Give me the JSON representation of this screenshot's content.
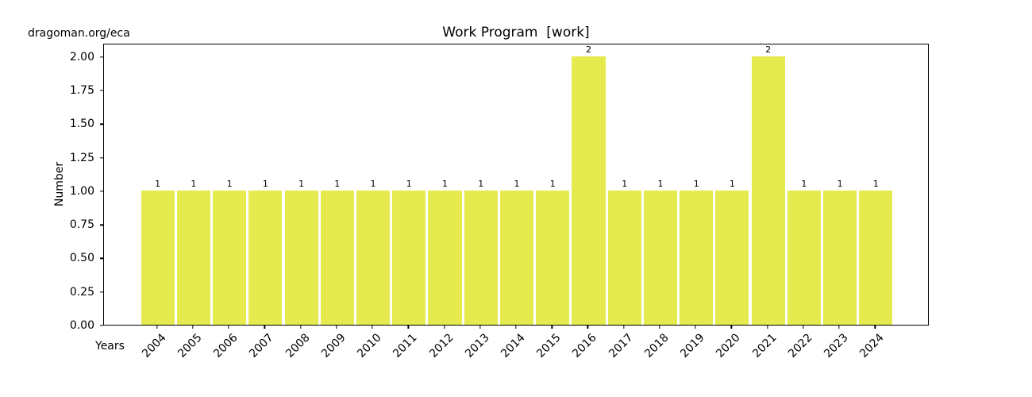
{
  "watermark": "dragoman.org/eca",
  "chart_data": {
    "type": "bar",
    "title": "Work Program  [work]",
    "xlabel": "Years",
    "ylabel": "Number",
    "categories": [
      "2004",
      "2005",
      "2006",
      "2007",
      "2008",
      "2009",
      "2010",
      "2011",
      "2012",
      "2013",
      "2014",
      "2015",
      "2016",
      "2017",
      "2018",
      "2019",
      "2020",
      "2021",
      "2022",
      "2023",
      "2024"
    ],
    "values": [
      1,
      1,
      1,
      1,
      1,
      1,
      1,
      1,
      1,
      1,
      1,
      1,
      2,
      1,
      1,
      1,
      1,
      2,
      1,
      1,
      1
    ],
    "bar_labels": [
      "1",
      "1",
      "1",
      "1",
      "1",
      "1",
      "1",
      "1",
      "1",
      "1",
      "1",
      "1",
      "2",
      "1",
      "1",
      "1",
      "1",
      "2",
      "1",
      "1",
      "1"
    ],
    "yticks": [
      "0.00",
      "0.25",
      "0.50",
      "0.75",
      "1.00",
      "1.25",
      "1.50",
      "1.75",
      "2.00"
    ],
    "ylim": [
      0,
      2.1
    ],
    "xtick_rotation": 45,
    "grid": false,
    "legend": false,
    "bar_color": "#e5eb4e",
    "background_color": "#ffffff",
    "spine_color": "#000000"
  }
}
